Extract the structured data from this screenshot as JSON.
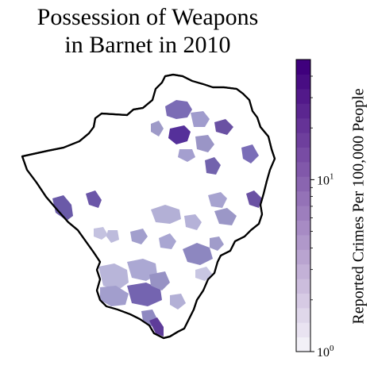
{
  "title": {
    "line1": "Possession of Weapons",
    "line2": "in Barnet in 2010"
  },
  "colorbar": {
    "label": "Reported Crimes Per 100,000 People",
    "scale": "log",
    "range": [
      1,
      50
    ],
    "ticks": [
      {
        "base": "10",
        "exp": "0",
        "value": 1
      },
      {
        "base": "10",
        "exp": "1",
        "value": 10
      }
    ],
    "colormap": "Purples",
    "levels": 20,
    "color_low": "#f2f0f7",
    "color_high": "#3f007d"
  },
  "map": {
    "region": "Barnet",
    "year": "2010",
    "boundary_color": "#000000",
    "background_area_color": "#ffffff"
  }
}
